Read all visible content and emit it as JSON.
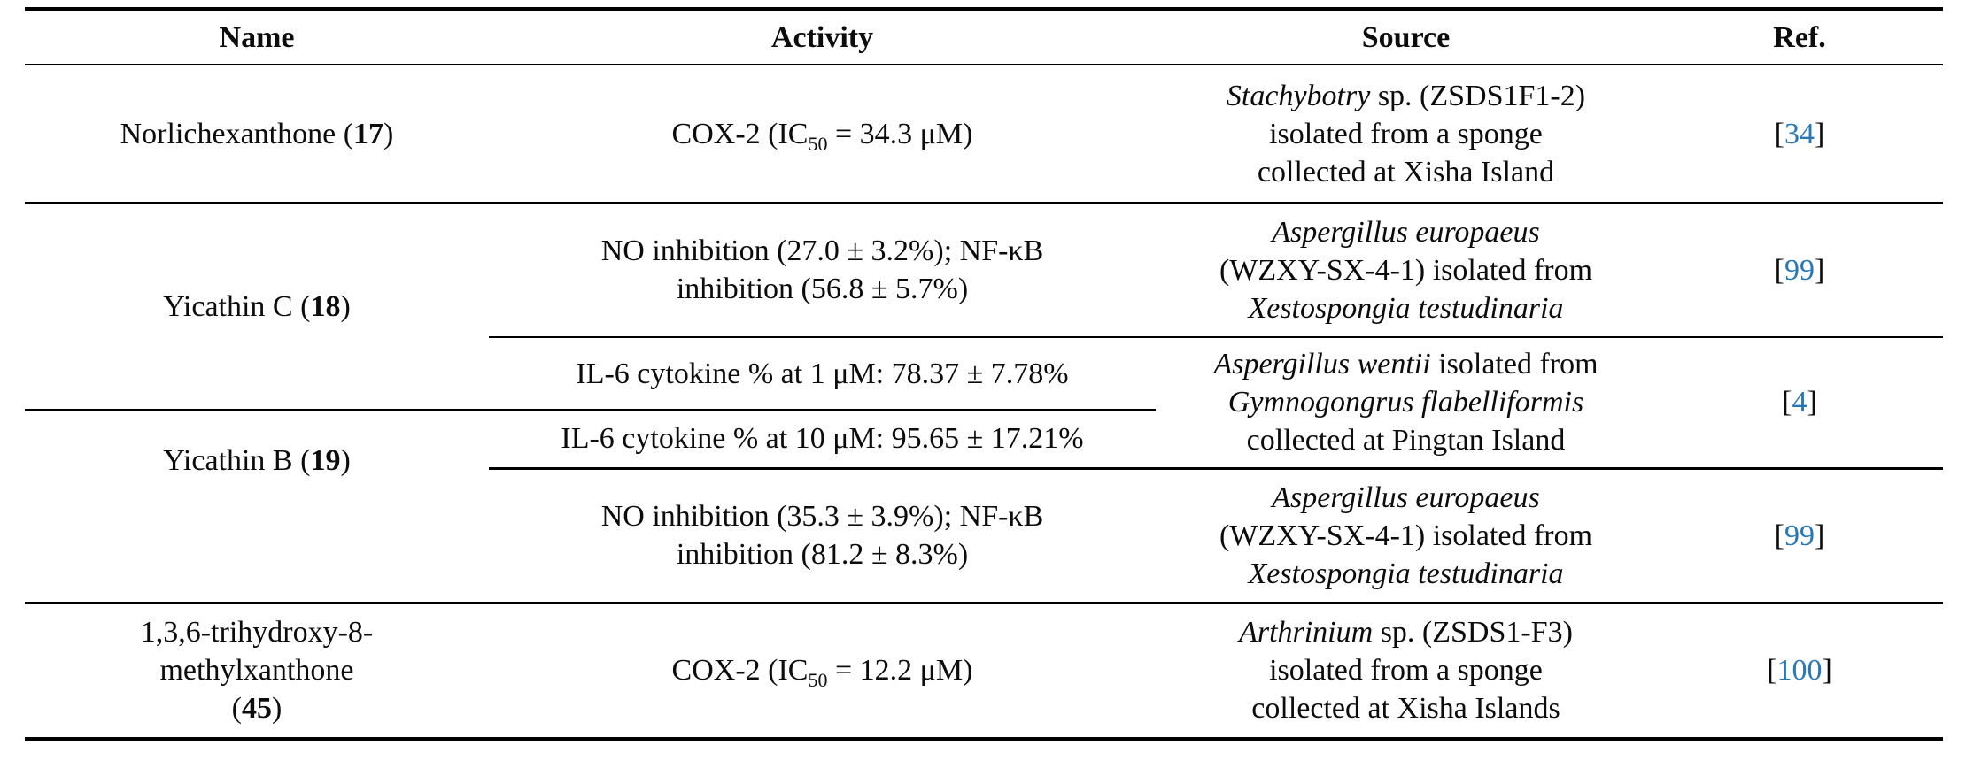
{
  "link_color": "#2878b8",
  "columns": [
    "Name",
    "Activity",
    "Source",
    "Ref."
  ],
  "rows": [
    {
      "cells": [
        {
          "col": "name",
          "lines": [
            [
              {
                "t": "Norlichexanthone ("
              },
              {
                "t": "17",
                "b": 1
              },
              {
                "t": ")"
              }
            ]
          ]
        },
        {
          "col": "activity",
          "lines": [
            [
              {
                "t": "COX-2 (IC"
              },
              {
                "t": "50",
                "sub": 1
              },
              {
                "t": " = 34.3 μM)"
              }
            ]
          ]
        },
        {
          "col": "source",
          "lines": [
            [
              {
                "t": "Stachybotry",
                "i": 1
              },
              {
                "t": " sp. (ZSDS1F1-2)"
              }
            ],
            [
              {
                "t": "isolated from a sponge"
              }
            ],
            [
              {
                "t": "collected at Xisha Island"
              }
            ]
          ]
        },
        {
          "col": "ref",
          "lines": [
            [
              {
                "t": "["
              },
              {
                "t": "34",
                "link": 1
              },
              {
                "t": "]"
              }
            ]
          ]
        }
      ]
    },
    {
      "cells": [
        {
          "col": "name",
          "rowspan": 2,
          "lines": [
            [
              {
                "t": "Yicathin C ("
              },
              {
                "t": "18",
                "b": 1
              },
              {
                "t": ")"
              }
            ]
          ]
        },
        {
          "col": "activity",
          "lines": [
            [
              {
                "t": "NO inhibition (27.0 ± 3.2%); NF-κB"
              }
            ],
            [
              {
                "t": "inhibition (56.8 ± 5.7%)"
              }
            ]
          ]
        },
        {
          "col": "source",
          "lines": [
            [
              {
                "t": "Aspergillus europaeus",
                "i": 1
              }
            ],
            [
              {
                "t": "(WZXY-SX-4-1) isolated from"
              }
            ],
            [
              {
                "t": "Xestospongia testudinaria",
                "i": 1
              }
            ]
          ]
        },
        {
          "col": "ref",
          "lines": [
            [
              {
                "t": "["
              },
              {
                "t": "99",
                "link": 1
              },
              {
                "t": "]"
              }
            ]
          ]
        }
      ]
    },
    {
      "cells": [
        {
          "col": "activity",
          "lines": [
            [
              {
                "t": "IL-6 cytokine % at 1 μM: 78.37 ± 7.78%"
              }
            ]
          ]
        },
        {
          "col": "source",
          "rowspan": 2,
          "lines": [
            [
              {
                "t": "Aspergillus wentii",
                "i": 1
              },
              {
                "t": " isolated from"
              }
            ],
            [
              {
                "t": "Gymnogongrus flabelliformis",
                "i": 1
              }
            ],
            [
              {
                "t": "collected at Pingtan Island"
              }
            ]
          ]
        },
        {
          "col": "ref",
          "rowspan": 2,
          "lines": [
            [
              {
                "t": "["
              },
              {
                "t": "4",
                "link": 1
              },
              {
                "t": "]"
              }
            ]
          ]
        }
      ]
    },
    {
      "cells": [
        {
          "col": "name",
          "rowspan": 2,
          "lines": [
            [
              {
                "t": "Yicathin B ("
              },
              {
                "t": "19",
                "b": 1
              },
              {
                "t": ")"
              }
            ]
          ]
        },
        {
          "col": "activity",
          "lines": [
            [
              {
                "t": "IL-6 cytokine % at 10 μM: 95.65 ± 17.21%"
              }
            ]
          ]
        }
      ]
    },
    {
      "cells": [
        {
          "col": "activity",
          "lines": [
            [
              {
                "t": "NO inhibition (35.3 ± 3.9%); NF-κB"
              }
            ],
            [
              {
                "t": "inhibition (81.2 ± 8.3%)"
              }
            ]
          ]
        },
        {
          "col": "source",
          "lines": [
            [
              {
                "t": "Aspergillus europaeus",
                "i": 1
              }
            ],
            [
              {
                "t": "(WZXY-SX-4-1) isolated from"
              }
            ],
            [
              {
                "t": "Xestospongia testudinaria",
                "i": 1
              }
            ]
          ]
        },
        {
          "col": "ref",
          "lines": [
            [
              {
                "t": "["
              },
              {
                "t": "99",
                "link": 1
              },
              {
                "t": "]"
              }
            ]
          ]
        }
      ]
    },
    {
      "cells": [
        {
          "col": "name",
          "lines": [
            [
              {
                "t": "1,3,6-trihydroxy-8-"
              }
            ],
            [
              {
                "t": "methylxanthone"
              }
            ],
            [
              {
                "t": "("
              },
              {
                "t": "45",
                "b": 1
              },
              {
                "t": ")"
              }
            ]
          ]
        },
        {
          "col": "activity",
          "lines": [
            [
              {
                "t": "COX-2 (IC"
              },
              {
                "t": "50",
                "sub": 1
              },
              {
                "t": " = 12.2 μM)"
              }
            ]
          ]
        },
        {
          "col": "source",
          "lines": [
            [
              {
                "t": "Arthrinium",
                "i": 1
              },
              {
                "t": " sp. (ZSDS1-F3)"
              }
            ],
            [
              {
                "t": "isolated from a sponge"
              }
            ],
            [
              {
                "t": "collected at Xisha Islands"
              }
            ]
          ]
        },
        {
          "col": "ref",
          "lines": [
            [
              {
                "t": "["
              },
              {
                "t": "100",
                "link": 1
              },
              {
                "t": "]"
              }
            ]
          ]
        }
      ]
    }
  ]
}
